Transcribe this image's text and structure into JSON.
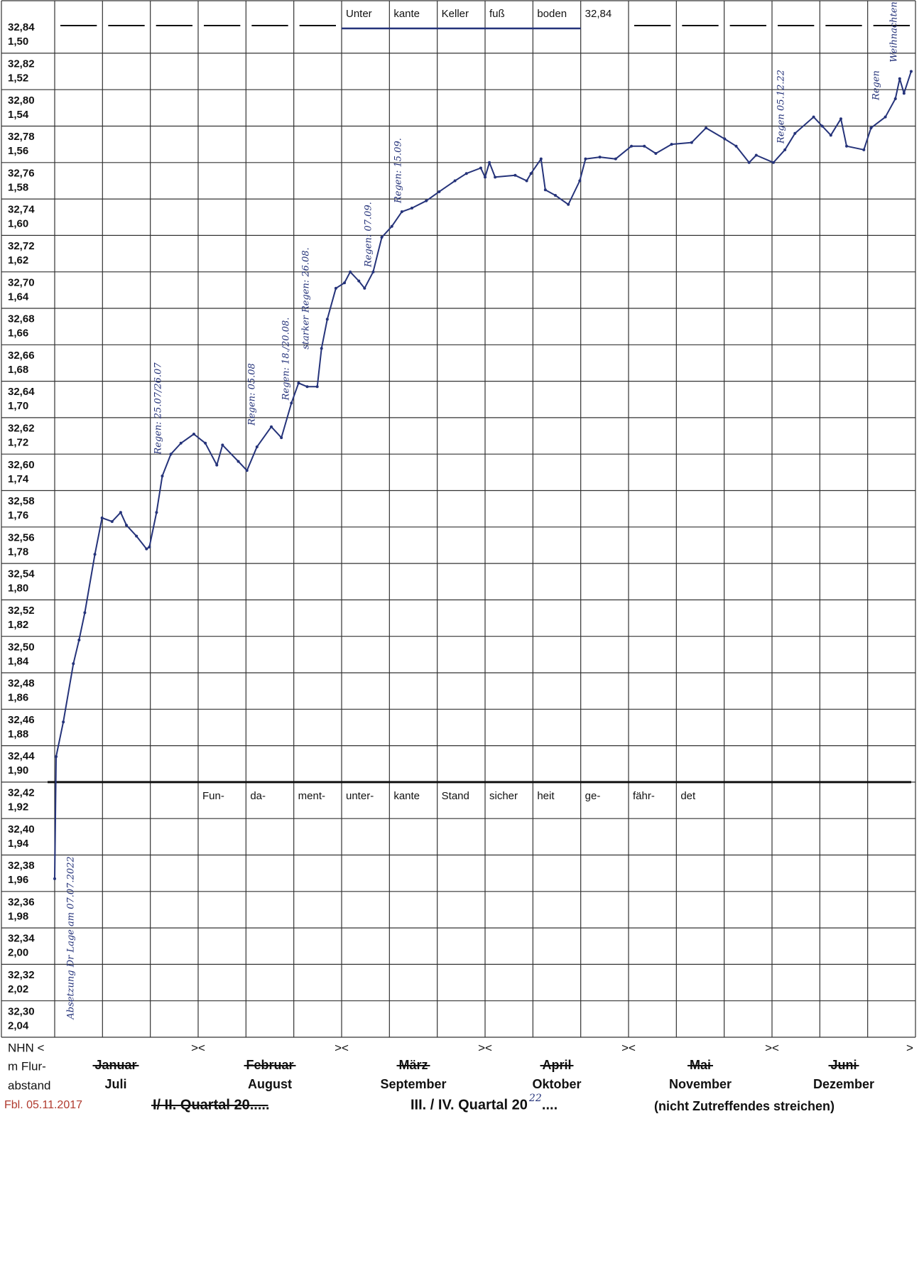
{
  "chart_data": {
    "type": "line",
    "header_cells": [
      "Unter",
      "kante",
      "Keller",
      "fuß",
      "boden",
      "32,84"
    ],
    "threshold": 32.43,
    "threshold_cells": [
      "Fun-",
      "da-",
      "ment-",
      "unter-",
      "kante",
      "Stand",
      "sicher",
      "heit",
      "ge-",
      "fähr-",
      "det"
    ],
    "ylim": [
      32.29,
      32.85
    ],
    "yticks": [
      {
        "value": 32.84,
        "label": "32,84"
      },
      {
        "value": 32.82,
        "label": "32,82"
      },
      {
        "value": 32.8,
        "label": "32,80"
      },
      {
        "value": 32.78,
        "label": "32,78"
      },
      {
        "value": 32.76,
        "label": "32,76"
      },
      {
        "value": 32.74,
        "label": "32,74"
      },
      {
        "value": 32.72,
        "label": "32,72"
      },
      {
        "value": 32.7,
        "label": "32,70"
      },
      {
        "value": 32.68,
        "label": "32,68"
      },
      {
        "value": 32.66,
        "label": "32,66"
      },
      {
        "value": 32.64,
        "label": "32,64"
      },
      {
        "value": 32.62,
        "label": "32,62"
      },
      {
        "value": 32.6,
        "label": "32,60"
      },
      {
        "value": 32.58,
        "label": "32,58"
      },
      {
        "value": 32.56,
        "label": "32,56"
      },
      {
        "value": 32.54,
        "label": "32,54"
      },
      {
        "value": 32.52,
        "label": "32,52"
      },
      {
        "value": 32.5,
        "label": "32,50"
      },
      {
        "value": 32.48,
        "label": "32,48"
      },
      {
        "value": 32.46,
        "label": "32,46"
      },
      {
        "value": 32.44,
        "label": "32,44"
      },
      {
        "value": 32.42,
        "label": "32,42"
      },
      {
        "value": 32.4,
        "label": "32,40"
      },
      {
        "value": 32.38,
        "label": "32,38"
      },
      {
        "value": 32.36,
        "label": "32,36"
      },
      {
        "value": 32.34,
        "label": "32,34"
      },
      {
        "value": 32.32,
        "label": "32,32"
      },
      {
        "value": 32.3,
        "label": "32,30"
      }
    ],
    "y2lim": [
      2.05,
      1.49
    ],
    "y2ticks": [
      {
        "value": 1.5,
        "label": "1,50"
      },
      {
        "value": 1.52,
        "label": "1,52"
      },
      {
        "value": 1.54,
        "label": "1,54"
      },
      {
        "value": 1.56,
        "label": "1,56"
      },
      {
        "value": 1.58,
        "label": "1,58"
      },
      {
        "value": 1.6,
        "label": "1,60"
      },
      {
        "value": 1.62,
        "label": "1,62"
      },
      {
        "value": 1.64,
        "label": "1,64"
      },
      {
        "value": 1.66,
        "label": "1,66"
      },
      {
        "value": 1.68,
        "label": "1,68"
      },
      {
        "value": 1.7,
        "label": "1,70"
      },
      {
        "value": 1.72,
        "label": "1,72"
      },
      {
        "value": 1.74,
        "label": "1,74"
      },
      {
        "value": 1.76,
        "label": "1,76"
      },
      {
        "value": 1.78,
        "label": "1,78"
      },
      {
        "value": 1.8,
        "label": "1,80"
      },
      {
        "value": 1.82,
        "label": "1,82"
      },
      {
        "value": 1.84,
        "label": "1,84"
      },
      {
        "value": 1.86,
        "label": "1,86"
      },
      {
        "value": 1.88,
        "label": "1,88"
      },
      {
        "value": 1.9,
        "label": "1,90"
      },
      {
        "value": 1.92,
        "label": "1,92"
      },
      {
        "value": 1.94,
        "label": "1,94"
      },
      {
        "value": 1.96,
        "label": "1,96"
      },
      {
        "value": 1.98,
        "label": "1,98"
      },
      {
        "value": 2.0,
        "label": "2,00"
      },
      {
        "value": 2.02,
        "label": "2,02"
      },
      {
        "value": 2.04,
        "label": "2,04"
      }
    ],
    "y_axis_label": "NHN <",
    "y2_axis_label": [
      "m Flur-",
      "abstand"
    ],
    "boundary_marker": "><",
    "end_marker": ">",
    "struck_categories": [
      "Januar",
      "Februar",
      "März",
      "April",
      "Mai",
      "Juni"
    ],
    "categories": [
      "Juli",
      "August",
      "September",
      "Oktober",
      "November",
      "Dezember"
    ],
    "xlim": [
      0,
      6
    ],
    "series": [
      {
        "color": "#25337a",
        "x": [
          0,
          0.01,
          0.06,
          0.13,
          0.17,
          0.21,
          0.28,
          0.33,
          0.4,
          0.46,
          0.5,
          0.57,
          0.64,
          0.66,
          0.71,
          0.75,
          0.81,
          0.88,
          0.97,
          1.05,
          1.13,
          1.17,
          1.28,
          1.34,
          1.41,
          1.51,
          1.58,
          1.65,
          1.7,
          1.76,
          1.83,
          1.86,
          1.9,
          1.96,
          2.02,
          2.06,
          2.12,
          2.16,
          2.22,
          2.28,
          2.35,
          2.42,
          2.49,
          2.59,
          2.68,
          2.79,
          2.87,
          2.97,
          3,
          3.03,
          3.07,
          3.21,
          3.29,
          3.32,
          3.39,
          3.42,
          3.49,
          3.58,
          3.66,
          3.7,
          3.8,
          3.91,
          4.02,
          4.11,
          4.19,
          4.3,
          4.44,
          4.54,
          4.67,
          4.75,
          4.84,
          4.89,
          5.01,
          5.09,
          5.16,
          5.29,
          5.35,
          5.41,
          5.48,
          5.52,
          5.64,
          5.69,
          5.79,
          5.86,
          5.89,
          5.92,
          5.97
        ],
        "values": [
          32.377,
          32.444,
          32.463,
          32.495,
          32.508,
          32.523,
          32.555,
          32.575,
          32.573,
          32.578,
          32.571,
          32.565,
          32.558,
          32.559,
          32.578,
          32.598,
          32.61,
          32.616,
          32.621,
          32.616,
          32.604,
          32.615,
          32.606,
          32.601,
          32.614,
          32.625,
          32.619,
          32.638,
          32.649,
          32.647,
          32.647,
          32.668,
          32.684,
          32.701,
          32.704,
          32.71,
          32.705,
          32.701,
          32.71,
          32.729,
          32.735,
          32.743,
          32.745,
          32.749,
          32.754,
          32.76,
          32.764,
          32.767,
          32.762,
          32.77,
          32.762,
          32.763,
          32.76,
          32.764,
          32.772,
          32.755,
          32.752,
          32.747,
          32.76,
          32.772,
          32.773,
          32.772,
          32.779,
          32.779,
          32.775,
          32.78,
          32.781,
          32.789,
          32.783,
          32.779,
          32.77,
          32.774,
          32.77,
          32.777,
          32.786,
          32.795,
          32.79,
          32.785,
          32.794,
          32.779,
          32.777,
          32.789,
          32.795,
          32.805,
          32.816,
          32.808,
          32.82
        ]
      }
    ],
    "annotations": [
      "Absetzung Dr Lage am 07.07.2022",
      "Regen: 25.07/26.07",
      "Regen: 05.08",
      "Regen: 18./20.08.",
      "starker Regen: 26.08.",
      "Regen: 07.09.",
      "Regen: 15.09.",
      "Regen 05.12.22",
      "Regen",
      "Weihnachten"
    ],
    "form_id": "Fbl. 05.11.2017",
    "quarter_struck": "I/ II. Quartal 20.....",
    "quarter_label": "III. / IV. Quartal 20",
    "quarter_year": "22",
    "quarter_dots": "....",
    "note": "(nicht Zutreffendes streichen)"
  }
}
